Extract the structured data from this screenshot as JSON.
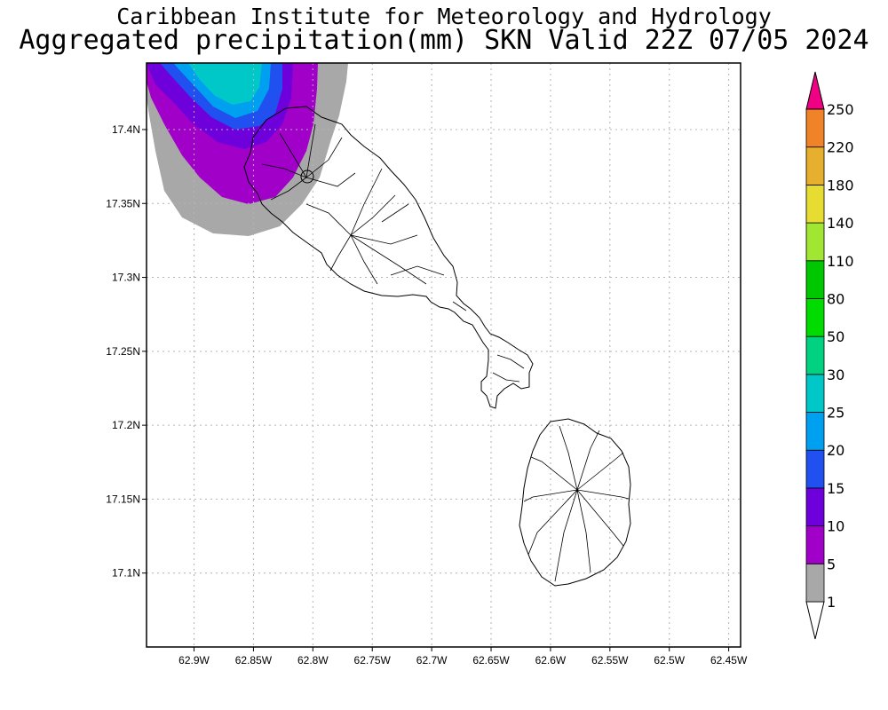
{
  "title_line1": "Caribbean Institute for Meteorology and Hydrology",
  "title_line2": "Aggregated precipitation(mm) SKN Valid 22Z 07/05 2024",
  "map": {
    "lon_min": -62.94,
    "lon_max": -62.44,
    "lat_min": 17.05,
    "lat_max": 17.445,
    "x_ticks": [
      {
        "value": -62.9,
        "label": "62.9W"
      },
      {
        "value": -62.85,
        "label": "62.85W"
      },
      {
        "value": -62.8,
        "label": "62.8W"
      },
      {
        "value": -62.75,
        "label": "62.75W"
      },
      {
        "value": -62.7,
        "label": "62.7W"
      },
      {
        "value": -62.65,
        "label": "62.65W"
      },
      {
        "value": -62.6,
        "label": "62.6W"
      },
      {
        "value": -62.55,
        "label": "62.55W"
      },
      {
        "value": -62.5,
        "label": "62.5W"
      },
      {
        "value": -62.45,
        "label": "62.45W"
      }
    ],
    "y_ticks": [
      {
        "value": 17.4,
        "label": "17.4N"
      },
      {
        "value": 17.35,
        "label": "17.35N"
      },
      {
        "value": 17.3,
        "label": "17.3N"
      },
      {
        "value": 17.25,
        "label": "17.25N"
      },
      {
        "value": 17.2,
        "label": "17.2N"
      },
      {
        "value": 17.15,
        "label": "17.15N"
      },
      {
        "value": 17.1,
        "label": "17.1N"
      }
    ],
    "grid": true
  },
  "colorbar": {
    "levels": [
      {
        "label": "1",
        "color": "#a8a8a8"
      },
      {
        "label": "5",
        "color": "#a000c8"
      },
      {
        "label": "10",
        "color": "#6e00dc"
      },
      {
        "label": "15",
        "color": "#2050f0"
      },
      {
        "label": "20",
        "color": "#00a0f0"
      },
      {
        "label": "25",
        "color": "#00c8c8"
      },
      {
        "label": "30",
        "color": "#00d282"
      },
      {
        "label": "50",
        "color": "#00dc00"
      },
      {
        "label": "80",
        "color": "#00c800"
      },
      {
        "label": "110",
        "color": "#a0e632"
      },
      {
        "label": "140",
        "color": "#e6dc32"
      },
      {
        "label": "180",
        "color": "#e6af2d"
      },
      {
        "label": "220",
        "color": "#f08228"
      },
      {
        "label": "250",
        "color": "#fa3c3c"
      }
    ],
    "top_color": "#f00082"
  }
}
